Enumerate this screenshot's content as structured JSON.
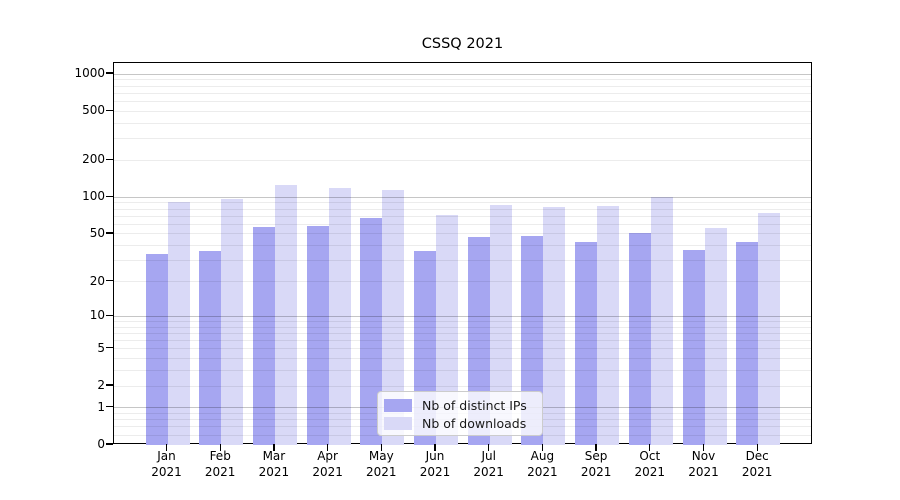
{
  "title": "CSSQ 2021",
  "colors": {
    "ips_bar": "#a6a6f1",
    "downloads_bar": "#d9d9f7",
    "major_gridline": "rgba(0,0,0,0.225)",
    "minor_gridline": "rgba(0,0,0,0.075)",
    "axis_line": "#000000",
    "legend_border": "#cccccc"
  },
  "chart_data": {
    "type": "bar",
    "title": "CSSQ 2021",
    "scale_y": "symlog (log above 1, includes 0)",
    "categories": [
      "Jan 2021",
      "Feb 2021",
      "Mar 2021",
      "Apr 2021",
      "May 2021",
      "Jun 2021",
      "Jul 2021",
      "Aug 2021",
      "Sep 2021",
      "Oct 2021",
      "Nov 2021",
      "Dec 2021"
    ],
    "series": [
      {
        "name": "Nb of distinct IPs",
        "values": [
          34,
          36,
          57,
          58,
          68,
          36,
          47,
          48,
          43,
          51,
          37,
          43
        ]
      },
      {
        "name": "Nb of downloads",
        "values": [
          92,
          96,
          126,
          118,
          114,
          72,
          86,
          83,
          85,
          100,
          56,
          74
        ]
      }
    ],
    "y_ticks": [
      1000,
      500,
      200,
      100,
      50,
      20,
      10,
      5,
      2,
      1,
      0
    ],
    "y_tick_labels": [
      "1000",
      "500",
      "200",
      "100",
      "50",
      "20",
      "10",
      "5",
      "2",
      "1",
      "0"
    ],
    "y_major_gridlines": [
      1,
      10,
      100,
      1000
    ],
    "y_minor_gridlines": [
      0.2,
      0.4,
      0.6,
      0.8,
      3,
      4,
      6,
      7,
      8,
      9,
      30,
      40,
      60,
      70,
      80,
      90,
      300,
      400,
      600,
      700,
      800,
      900
    ],
    "ylim": [
      0,
      1230
    ],
    "xlabel": "",
    "ylabel": "",
    "grid": true,
    "legend_position": "lower center"
  }
}
